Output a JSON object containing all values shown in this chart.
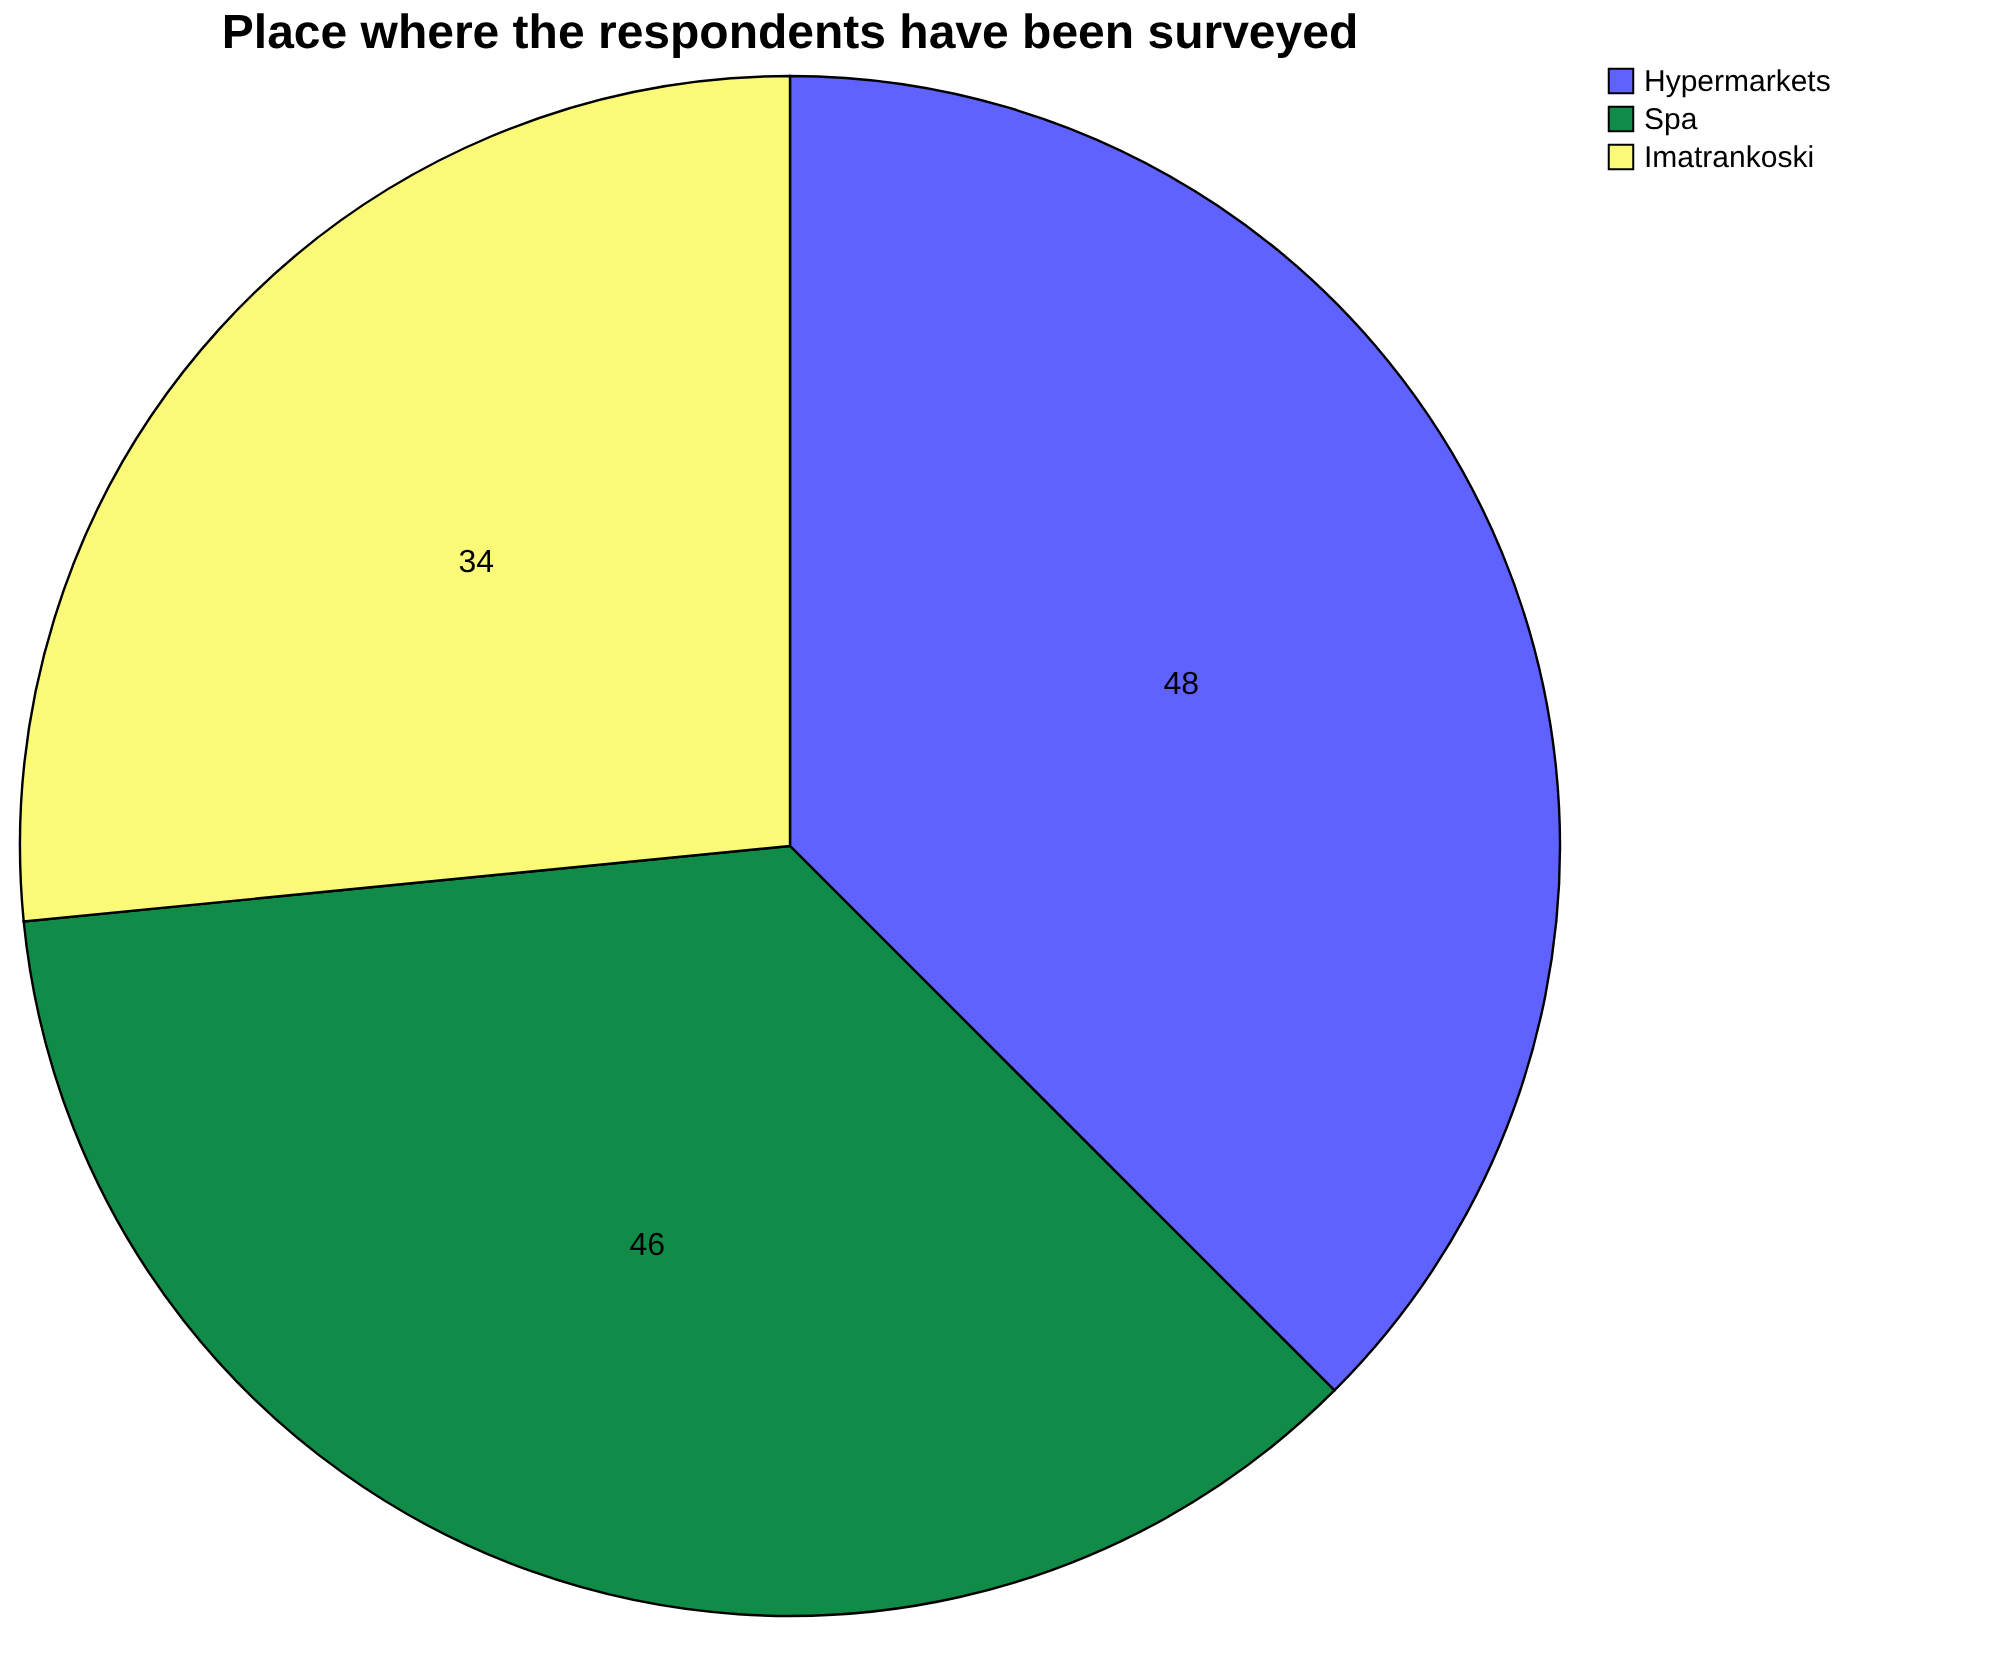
{
  "chart_data": {
    "type": "pie",
    "title": "Place where the respondents have been surveyed",
    "categories": [
      "Hypermarkets",
      "Spa",
      "Imatrankoski"
    ],
    "values": [
      48,
      46,
      34
    ],
    "colors": [
      "#5f62ff",
      "#118c48",
      "#fafa78"
    ],
    "data_labels": true,
    "legend": "top right"
  }
}
